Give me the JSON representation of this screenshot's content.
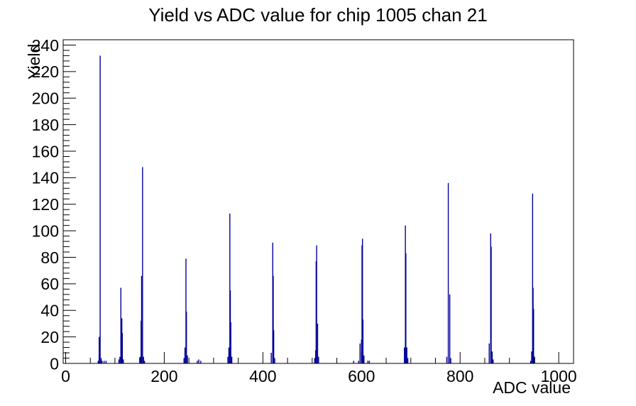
{
  "chart_data": {
    "type": "bar",
    "title": "Yield vs ADC value for chip 1005 chan 21",
    "xlabel": "ADC value",
    "ylabel": "Yield",
    "xlim": [
      -5,
      1030
    ],
    "ylim": [
      0,
      244
    ],
    "x_major_ticks": [
      0,
      200,
      400,
      600,
      800,
      1000
    ],
    "x_minor_step": 50,
    "x_minor_max": 1020,
    "y_major_ticks": [
      0,
      20,
      40,
      60,
      80,
      100,
      120,
      140,
      160,
      180,
      200,
      220,
      240
    ],
    "y_minor_step": 4,
    "grid": false,
    "legend": "none",
    "bar_color": "#000099",
    "axis_color": "#000000",
    "background_color": "#ffffff",
    "bin_width": 2,
    "peaks": [
      {
        "adc": 70,
        "yield": 232
      },
      {
        "adc": 112,
        "yield": 57
      },
      {
        "adc": 156,
        "yield": 148
      },
      {
        "adc": 244,
        "yield": 79
      },
      {
        "adc": 333,
        "yield": 113
      },
      {
        "adc": 420,
        "yield": 91
      },
      {
        "adc": 509,
        "yield": 89
      },
      {
        "adc": 602,
        "yield": 94
      },
      {
        "adc": 689,
        "yield": 104
      },
      {
        "adc": 776,
        "yield": 136
      },
      {
        "adc": 862,
        "yield": 98
      },
      {
        "adc": 947,
        "yield": 128
      }
    ],
    "bars": [
      [
        66,
        2
      ],
      [
        68,
        20
      ],
      [
        70,
        232
      ],
      [
        72,
        4
      ],
      [
        74,
        2
      ],
      [
        78,
        2
      ],
      [
        82,
        2
      ],
      [
        108,
        3
      ],
      [
        110,
        5
      ],
      [
        112,
        57
      ],
      [
        114,
        34
      ],
      [
        115,
        23
      ],
      [
        117,
        3
      ],
      [
        151,
        5
      ],
      [
        153,
        32
      ],
      [
        154,
        66
      ],
      [
        156,
        148
      ],
      [
        158,
        5
      ],
      [
        160,
        2
      ],
      [
        240,
        4
      ],
      [
        242,
        12
      ],
      [
        244,
        79
      ],
      [
        245,
        39
      ],
      [
        247,
        6
      ],
      [
        267,
        2
      ],
      [
        270,
        3
      ],
      [
        274,
        2
      ],
      [
        329,
        5
      ],
      [
        331,
        12
      ],
      [
        333,
        113
      ],
      [
        334,
        55
      ],
      [
        335,
        31
      ],
      [
        337,
        5
      ],
      [
        417,
        8
      ],
      [
        420,
        91
      ],
      [
        421,
        66
      ],
      [
        422,
        25
      ],
      [
        424,
        4
      ],
      [
        505,
        4
      ],
      [
        507,
        10
      ],
      [
        508,
        77
      ],
      [
        509,
        89
      ],
      [
        511,
        30
      ],
      [
        513,
        5
      ],
      [
        584,
        2
      ],
      [
        594,
        2
      ],
      [
        597,
        15
      ],
      [
        600,
        18
      ],
      [
        601,
        89
      ],
      [
        602,
        94
      ],
      [
        603,
        33
      ],
      [
        605,
        6
      ],
      [
        613,
        2
      ],
      [
        616,
        2
      ],
      [
        687,
        12
      ],
      [
        689,
        104
      ],
      [
        690,
        83
      ],
      [
        692,
        12
      ],
      [
        694,
        4
      ],
      [
        773,
        5
      ],
      [
        776,
        136
      ],
      [
        779,
        52
      ],
      [
        781,
        4
      ],
      [
        859,
        15
      ],
      [
        862,
        98
      ],
      [
        863,
        88
      ],
      [
        865,
        9
      ],
      [
        867,
        3
      ],
      [
        943,
        2
      ],
      [
        945,
        9
      ],
      [
        947,
        128
      ],
      [
        948,
        57
      ],
      [
        949,
        41
      ],
      [
        951,
        5
      ]
    ]
  }
}
